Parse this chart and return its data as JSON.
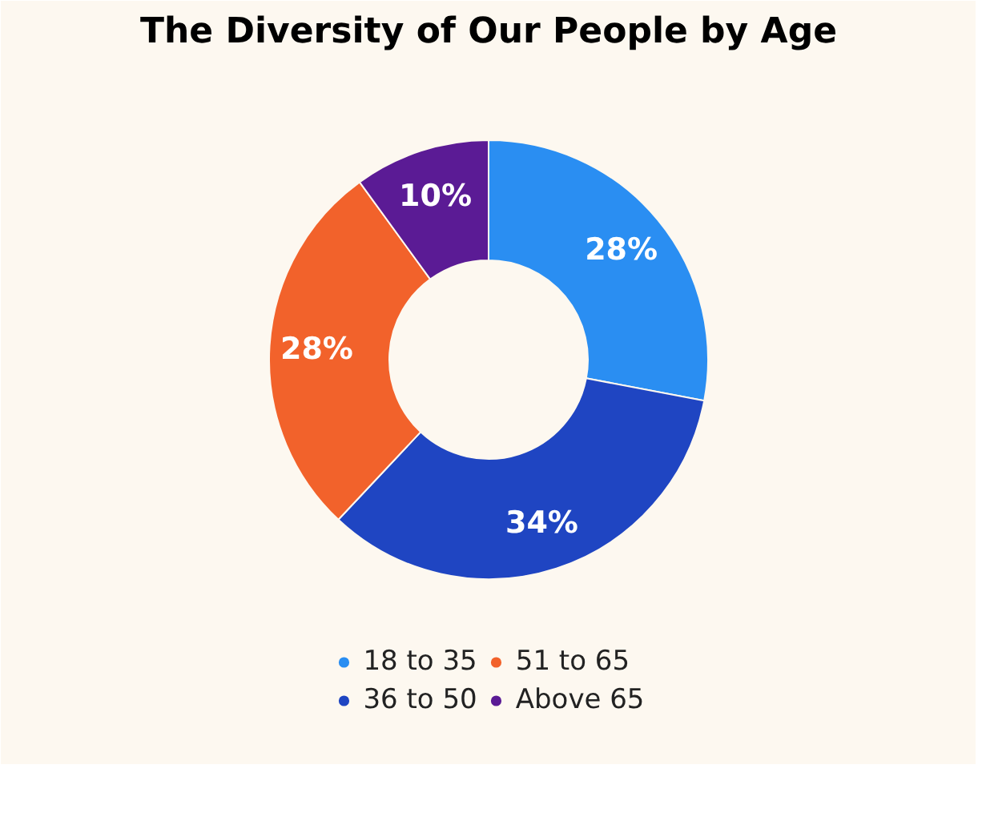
{
  "chart_data": {
    "type": "donut",
    "title": "The Diversity of Our People by Age",
    "categories": [
      "18 to 35",
      "36 to 50",
      "51 to 65",
      "Above 65"
    ],
    "values": [
      28,
      34,
      28,
      10
    ],
    "colors": [
      "#2a8ef2",
      "#1f45c2",
      "#f2622b",
      "#5b1b95"
    ],
    "value_labels": [
      "28%",
      "34%",
      "28%",
      "10%"
    ],
    "legend": "bottom"
  }
}
